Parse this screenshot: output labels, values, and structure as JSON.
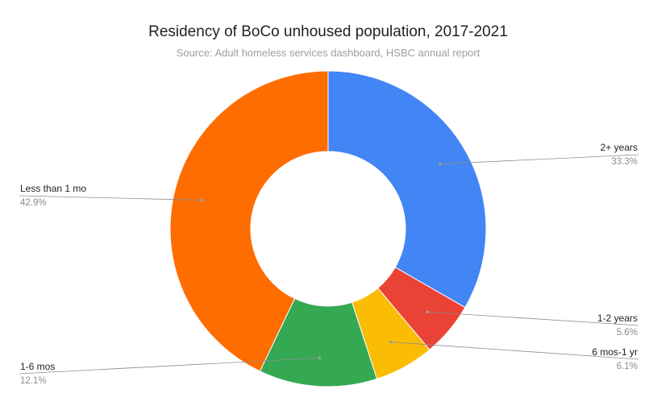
{
  "chart_data": {
    "type": "pie",
    "donut": true,
    "title": "Residency of BoCo unhoused population, 2017-2021",
    "subtitle": "Source: Adult homeless services dashboard, HSBC annual report",
    "slices": [
      {
        "label": "2+ years",
        "value": 33.3,
        "value_label": "33.3%",
        "color": "#4285f4"
      },
      {
        "label": "1-2 years",
        "value": 5.6,
        "value_label": "5.6%",
        "color": "#ea4335"
      },
      {
        "label": "6 mos-1 yr",
        "value": 6.1,
        "value_label": "6.1%",
        "color": "#fbbc04"
      },
      {
        "label": "1-6 mos",
        "value": 12.1,
        "value_label": "12.1%",
        "color": "#34a853"
      },
      {
        "label": "Less than 1 mo",
        "value": 42.9,
        "value_label": "42.9%",
        "color": "#ff6d01"
      }
    ]
  }
}
